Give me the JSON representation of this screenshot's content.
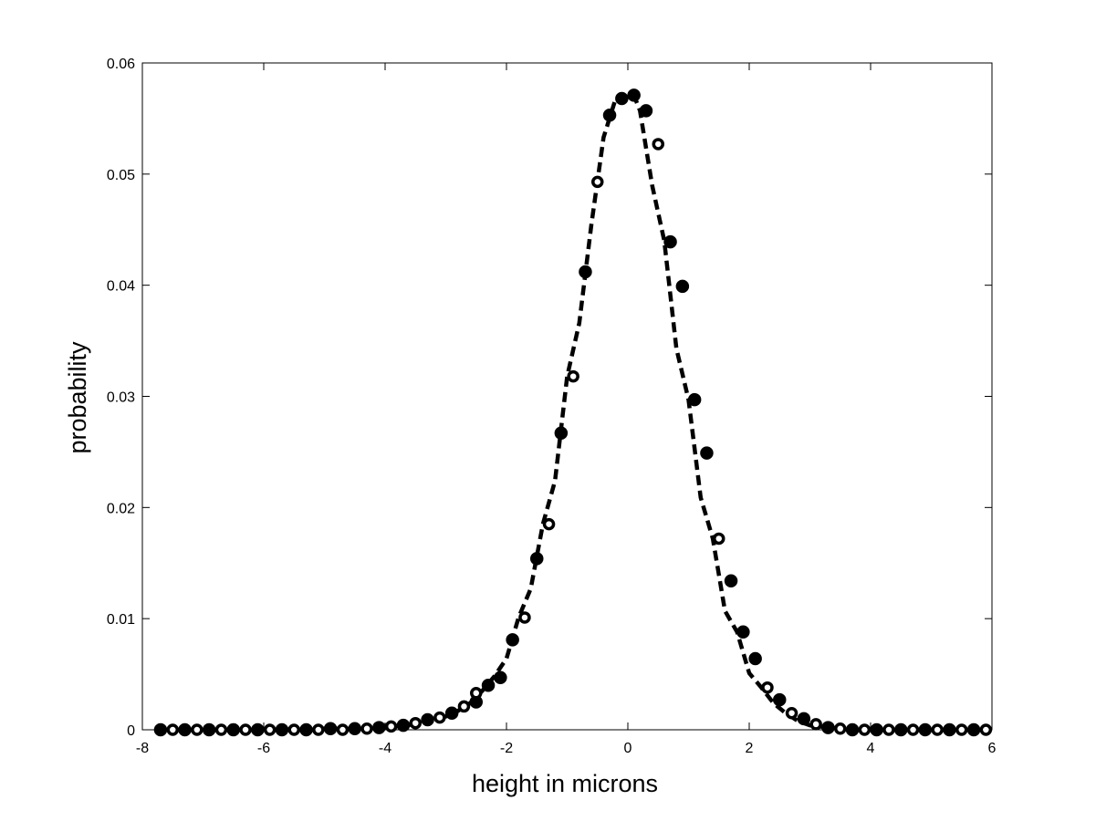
{
  "chart_data": {
    "type": "line",
    "title": "",
    "xlabel": "height in microns",
    "ylabel": "probability",
    "xlim": [
      -8,
      6
    ],
    "ylim": [
      0,
      0.06
    ],
    "xticks": [
      -8,
      -6,
      -4,
      -2,
      0,
      2,
      4,
      6
    ],
    "xtick_labels": [
      "-8",
      "-6",
      "-4",
      "-2",
      "0",
      "2",
      "4",
      "6"
    ],
    "yticks": [
      0,
      0.01,
      0.02,
      0.03,
      0.04,
      0.05,
      0.06
    ],
    "ytick_labels": [
      "0",
      "0.01",
      "0.02",
      "0.03",
      "0.04",
      "0.05",
      "0.06"
    ],
    "grid": false,
    "series": [
      {
        "style": "filled-circle markers",
        "color": "#000000",
        "x": [
          -7.7,
          -7.3,
          -6.9,
          -6.5,
          -6.1,
          -5.7,
          -5.3,
          -4.9,
          -4.5,
          -4.1,
          -3.7,
          -3.3,
          -2.9,
          -2.5,
          -2.3,
          -2.1,
          -1.9,
          -1.5,
          -1.1,
          -0.7,
          -0.3,
          -0.1,
          0.1,
          0.3,
          0.7,
          0.9,
          1.1,
          1.3,
          1.7,
          1.9,
          2.1,
          2.5,
          2.9,
          3.3,
          3.7,
          4.1,
          4.5,
          4.9,
          5.3,
          5.7
        ],
        "y": [
          0,
          0,
          0,
          0,
          0,
          0,
          0,
          0.0001,
          0.0001,
          0.0002,
          0.0004,
          0.0009,
          0.0015,
          0.0025,
          0.004,
          0.0047,
          0.0081,
          0.0154,
          0.0267,
          0.0412,
          0.0553,
          0.0568,
          0.0571,
          0.0557,
          0.0439,
          0.0399,
          0.0297,
          0.0249,
          0.0134,
          0.0088,
          0.0064,
          0.0027,
          0.001,
          0.0002,
          0,
          0,
          0,
          0,
          0,
          0
        ]
      },
      {
        "style": "open-circle markers",
        "color": "#000000",
        "x": [
          -7.5,
          -7.1,
          -6.7,
          -6.3,
          -5.9,
          -5.5,
          -5.1,
          -4.7,
          -4.3,
          -3.9,
          -3.5,
          -3.1,
          -2.7,
          -2.5,
          -1.7,
          -1.3,
          -0.9,
          -0.5,
          0.5,
          1.5,
          2.3,
          2.7,
          3.1,
          3.5,
          3.9,
          4.3,
          4.7,
          5.1,
          5.5,
          5.9
        ],
        "y": [
          0,
          0,
          0,
          0,
          0,
          0,
          0,
          0,
          0.0001,
          0.0003,
          0.0006,
          0.0011,
          0.0021,
          0.0033,
          0.0101,
          0.0185,
          0.0318,
          0.0493,
          0.0527,
          0.0172,
          0.0038,
          0.0015,
          0.0005,
          0.0001,
          0,
          0,
          0,
          0,
          0,
          0
        ]
      },
      {
        "style": "dashed line",
        "color": "#000000",
        "x": [
          -7.7,
          -6.0,
          -5.0,
          -4.5,
          -4.0,
          -3.5,
          -3.0,
          -2.8,
          -2.6,
          -2.4,
          -2.2,
          -2.0,
          -1.8,
          -1.6,
          -1.4,
          -1.2,
          -1.0,
          -0.8,
          -0.6,
          -0.4,
          -0.2,
          0.0,
          0.1,
          0.2,
          0.4,
          0.6,
          0.8,
          1.0,
          1.2,
          1.4,
          1.6,
          1.8,
          2.0,
          2.2,
          2.4,
          2.6,
          2.8,
          3.0,
          3.3,
          3.6,
          4.0,
          5.0,
          5.9
        ],
        "y": [
          0,
          0,
          0.0001,
          0.0001,
          0.0002,
          0.0005,
          0.0012,
          0.0017,
          0.0024,
          0.0035,
          0.0048,
          0.0064,
          0.0101,
          0.0127,
          0.0185,
          0.0224,
          0.0318,
          0.0366,
          0.0455,
          0.0533,
          0.0568,
          0.0569,
          0.0571,
          0.0557,
          0.049,
          0.044,
          0.0343,
          0.0297,
          0.0209,
          0.0172,
          0.0107,
          0.0088,
          0.0051,
          0.0038,
          0.0024,
          0.0015,
          0.0008,
          0.0004,
          0.0002,
          0.0001,
          0,
          0,
          0
        ]
      }
    ]
  }
}
